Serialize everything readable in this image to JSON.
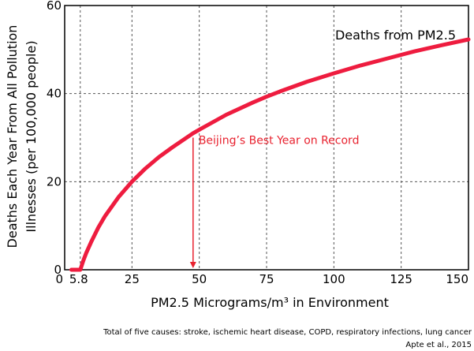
{
  "chart_data": {
    "type": "line",
    "xlabel": "PM2.5 Micrograms/m³ in Environment",
    "ylabel_lines": [
      "Deaths Each Year From All Pollution",
      "Illnesses (per 100,000 people)"
    ],
    "xlim": [
      0,
      150
    ],
    "ylim": [
      0,
      60
    ],
    "x_ticks": [
      0,
      5.8,
      25,
      50,
      75,
      100,
      125,
      150
    ],
    "x_tick_labels": [
      "0",
      "5.8",
      "25",
      "50",
      "75",
      "100",
      "125",
      "150"
    ],
    "y_ticks": [
      0,
      20,
      40,
      60
    ],
    "y_tick_labels": [
      "0",
      "20",
      "40",
      "60"
    ],
    "grid": "dashed",
    "series": [
      {
        "name": "Deaths from PM2.5",
        "color": "#ee1c3f",
        "points": [
          [
            2.5,
            0
          ],
          [
            5.8,
            0
          ],
          [
            7,
            2.2
          ],
          [
            8,
            3.8
          ],
          [
            10,
            6.5
          ],
          [
            12.5,
            9.6
          ],
          [
            15,
            12.2
          ],
          [
            20,
            16.5
          ],
          [
            25,
            20.0
          ],
          [
            30,
            23.0
          ],
          [
            35,
            25.6
          ],
          [
            40,
            27.8
          ],
          [
            47.7,
            31.0
          ],
          [
            50,
            31.8
          ],
          [
            60,
            35.2
          ],
          [
            70,
            38.0
          ],
          [
            75,
            39.3
          ],
          [
            80,
            40.5
          ],
          [
            90,
            42.7
          ],
          [
            100,
            44.6
          ],
          [
            110,
            46.4
          ],
          [
            120,
            48.0
          ],
          [
            125,
            48.8
          ],
          [
            130,
            49.6
          ],
          [
            140,
            51.0
          ],
          [
            150,
            52.3
          ]
        ]
      }
    ],
    "annotations": [
      {
        "text": "Beijing’s Best Year on Record",
        "x": 47.7,
        "y_from": 30.0,
        "y_to": 0,
        "color": "#e8222f"
      }
    ]
  },
  "footnotes": [
    "Total of five causes: stroke, ischemic heart disease, COPD, respiratory infections, lung cancer",
    "Apte et al., 2015"
  ]
}
